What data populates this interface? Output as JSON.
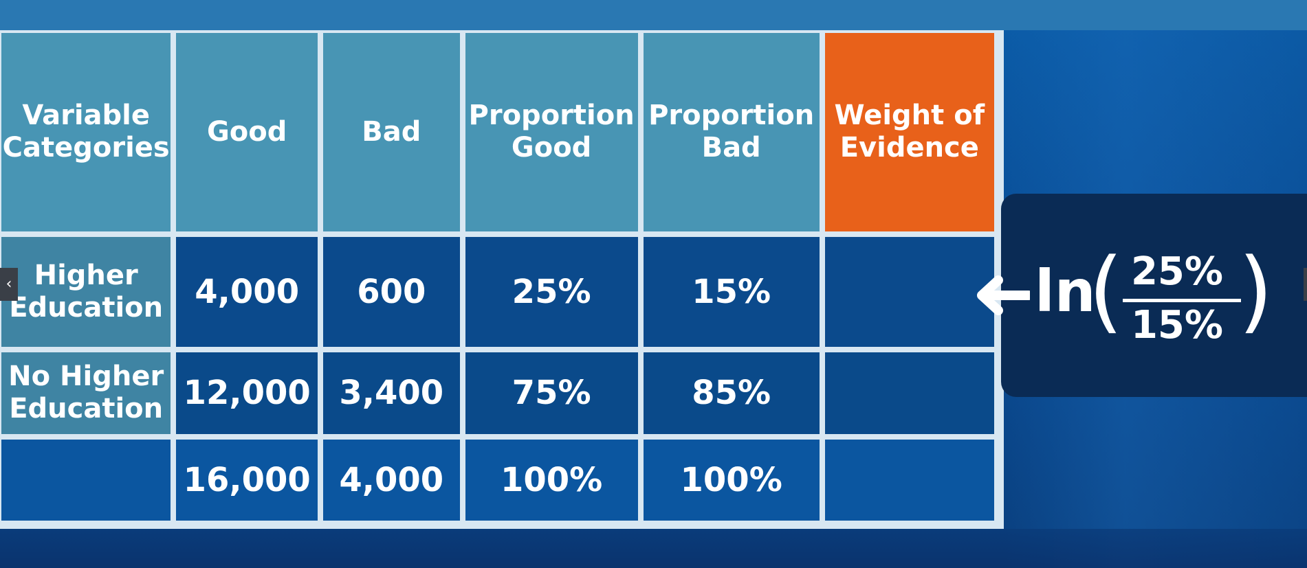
{
  "table": {
    "headers": [
      {
        "label": "Variable Categories"
      },
      {
        "label": "Good"
      },
      {
        "label": "Bad"
      },
      {
        "label": "Proportion Good"
      },
      {
        "label": "Proportion Bad"
      },
      {
        "label": "Weight of Evidence"
      }
    ],
    "rows": [
      {
        "category": "Higher Education",
        "good": "4,000",
        "bad": "600",
        "proportion_good": "25%",
        "proportion_bad": "15%",
        "woe": ""
      },
      {
        "category": "No Higher Education",
        "good": "12,000",
        "bad": "3,400",
        "proportion_good": "75%",
        "proportion_bad": "85%",
        "woe": ""
      },
      {
        "category": "",
        "good": "16,000",
        "bad": "4,000",
        "proportion_good": "100%",
        "proportion_bad": "100%",
        "woe": ""
      }
    ]
  },
  "formula": {
    "function": "ln",
    "numerator": "25%",
    "denominator": "15%"
  },
  "nav": {
    "prev_glyph": "‹"
  },
  "colors": {
    "header": "#4895b4",
    "woe_header": "#e8611a",
    "category_cell": "#3f84a3",
    "value_cell": "#064a8b",
    "formula_panel": "#0a2b55"
  },
  "icons": {
    "arrow": "arrow-left-icon",
    "prev": "chevron-left-icon"
  }
}
